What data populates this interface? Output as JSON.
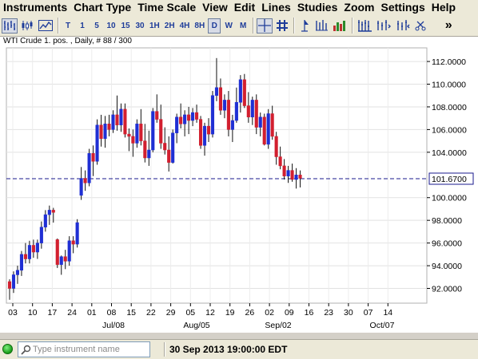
{
  "menu": [
    "Instruments",
    "Chart Type",
    "Time Scale",
    "View",
    "Edit",
    "Lines",
    "Studies",
    "Zoom",
    "Settings",
    "Help"
  ],
  "toolbar": {
    "timeframes": [
      "T",
      "1",
      "5",
      "10",
      "15",
      "30",
      "1H",
      "2H",
      "4H",
      "8H",
      "D",
      "W",
      "M"
    ],
    "active_timeframe": "D",
    "icons": [
      "bar-chart-icon",
      "candlestick-icon",
      "line-chart-icon",
      "crosshair-icon",
      "grid-icon",
      "marker-icon",
      "vertical-bars-icon",
      "volume-icon",
      "multi-chart-icon",
      "expand-icon",
      "scissors-icon",
      "overflow-icon"
    ],
    "overflow_label": "»"
  },
  "chart": {
    "title": "WTI Crude 1. pos. , Daily, # 88 / 300",
    "current_price": "101.6700",
    "accent_color": "#1f2fb8",
    "price_line_color": "#1a1a8c",
    "up_color": "#1f2fd4",
    "down_color": "#d21f2f"
  },
  "chart_data": {
    "type": "candlestick",
    "title": "WTI Crude 1. pos. , Daily, # 88 / 300",
    "y_ticks": [
      "112.0000",
      "110.0000",
      "108.0000",
      "106.0000",
      "104.0000",
      "100.0000",
      "98.0000",
      "96.0000",
      "94.0000",
      "92.0000"
    ],
    "y_tick_values": [
      112,
      110,
      108,
      106,
      104,
      100,
      98,
      96,
      94,
      92
    ],
    "ylim": [
      90.7,
      113.2
    ],
    "x_ticks": [
      "03",
      "10",
      "17",
      "24",
      "01",
      "08",
      "15",
      "22",
      "29",
      "05",
      "12",
      "19",
      "26",
      "02",
      "09",
      "16",
      "23",
      "30",
      "07",
      "14"
    ],
    "months": [
      "Jul/08",
      "Aug/05",
      "Sep/02",
      "Oct/07"
    ],
    "last_price": 101.67,
    "grid": true,
    "candles": [
      [
        92.6,
        92.8,
        91.0,
        92.0
      ],
      [
        92.0,
        93.5,
        91.6,
        93.2
      ],
      [
        93.2,
        94.0,
        92.4,
        93.6
      ],
      [
        93.6,
        95.3,
        93.1,
        95.0
      ],
      [
        95.0,
        96.0,
        94.2,
        94.6
      ],
      [
        94.6,
        96.2,
        94.2,
        95.8
      ],
      [
        95.8,
        96.3,
        94.7,
        95.2
      ],
      [
        95.2,
        96.3,
        94.6,
        96.0
      ],
      [
        96.0,
        97.9,
        95.5,
        97.4
      ],
      [
        97.4,
        98.9,
        97.0,
        98.5
      ],
      [
        98.5,
        99.3,
        97.6,
        98.9
      ],
      [
        98.9,
        99.1,
        97.8,
        98.7
      ],
      [
        96.3,
        96.4,
        93.8,
        94.1
      ],
      [
        94.1,
        94.9,
        93.2,
        94.8
      ],
      [
        94.8,
        95.4,
        93.7,
        94.4
      ],
      [
        94.4,
        96.6,
        94.0,
        96.2
      ],
      [
        96.2,
        96.6,
        95.1,
        95.9
      ],
      [
        95.9,
        98.1,
        95.6,
        97.8
      ],
      [
        100.2,
        102.7,
        99.8,
        101.7
      ],
      [
        101.7,
        102.4,
        100.6,
        101.3
      ],
      [
        101.3,
        104.3,
        101.0,
        103.9
      ],
      [
        103.9,
        104.6,
        101.9,
        103.2
      ],
      [
        103.2,
        106.9,
        102.9,
        106.4
      ],
      [
        106.4,
        107.3,
        104.5,
        105.2
      ],
      [
        105.2,
        107.2,
        104.4,
        106.5
      ],
      [
        106.5,
        107.3,
        105.4,
        106.0
      ],
      [
        106.0,
        107.7,
        105.7,
        107.3
      ],
      [
        107.3,
        109.0,
        105.9,
        106.4
      ],
      [
        106.4,
        108.3,
        105.8,
        107.8
      ],
      [
        107.8,
        108.3,
        105.3,
        105.6
      ],
      [
        105.6,
        106.1,
        104.1,
        105.4
      ],
      [
        105.4,
        106.0,
        103.6,
        104.8
      ],
      [
        104.8,
        106.9,
        104.4,
        106.5
      ],
      [
        106.5,
        107.8,
        104.6,
        105.0
      ],
      [
        105.0,
        106.5,
        103.1,
        103.5
      ],
      [
        103.5,
        105.9,
        102.8,
        104.2
      ],
      [
        104.2,
        107.9,
        104.0,
        107.6
      ],
      [
        107.6,
        109.1,
        106.6,
        106.9
      ],
      [
        106.9,
        108.2,
        104.3,
        104.8
      ],
      [
        104.8,
        106.2,
        103.8,
        104.2
      ],
      [
        104.2,
        105.4,
        102.3,
        103.1
      ],
      [
        103.1,
        106.0,
        103.0,
        105.7
      ],
      [
        105.7,
        107.4,
        104.8,
        107.1
      ],
      [
        107.1,
        108.3,
        106.1,
        106.5
      ],
      [
        106.5,
        107.7,
        105.4,
        107.3
      ],
      [
        107.3,
        108.0,
        105.6,
        106.8
      ],
      [
        106.8,
        107.9,
        106.3,
        107.5
      ],
      [
        107.5,
        108.2,
        106.6,
        106.9
      ],
      [
        106.9,
        107.2,
        104.3,
        104.6
      ],
      [
        104.6,
        106.6,
        103.7,
        106.3
      ],
      [
        106.3,
        107.0,
        104.9,
        105.6
      ],
      [
        105.6,
        109.4,
        105.3,
        109.0
      ],
      [
        109.0,
        112.3,
        108.5,
        109.7
      ],
      [
        109.7,
        110.5,
        107.3,
        107.7
      ],
      [
        107.7,
        109.1,
        107.0,
        108.6
      ],
      [
        108.6,
        109.4,
        105.4,
        106.0
      ],
      [
        106.0,
        107.3,
        104.9,
        106.8
      ],
      [
        106.8,
        109.7,
        106.6,
        108.4
      ],
      [
        108.4,
        110.8,
        107.5,
        110.4
      ],
      [
        110.4,
        110.9,
        107.9,
        108.1
      ],
      [
        108.1,
        109.3,
        106.6,
        107.1
      ],
      [
        107.1,
        108.9,
        106.4,
        108.6
      ],
      [
        108.6,
        109.1,
        105.6,
        106.2
      ],
      [
        106.2,
        107.5,
        105.4,
        107.1
      ],
      [
        107.1,
        107.4,
        104.6,
        104.7
      ],
      [
        104.7,
        107.8,
        104.3,
        107.4
      ],
      [
        107.4,
        108.1,
        105.1,
        105.4
      ],
      [
        105.4,
        105.8,
        102.9,
        103.6
      ],
      [
        103.6,
        104.5,
        102.5,
        102.8
      ],
      [
        102.8,
        103.4,
        101.6,
        101.9
      ],
      [
        101.9,
        102.8,
        101.3,
        102.4
      ],
      [
        102.4,
        103.0,
        101.4,
        101.6
      ],
      [
        101.6,
        102.6,
        100.8,
        102.0
      ],
      [
        102.0,
        102.4,
        100.9,
        101.7
      ]
    ]
  },
  "status": {
    "instrument_placeholder": "Type instrument name",
    "datetime": "30 Sep 2013 19:00:00 EDT"
  }
}
